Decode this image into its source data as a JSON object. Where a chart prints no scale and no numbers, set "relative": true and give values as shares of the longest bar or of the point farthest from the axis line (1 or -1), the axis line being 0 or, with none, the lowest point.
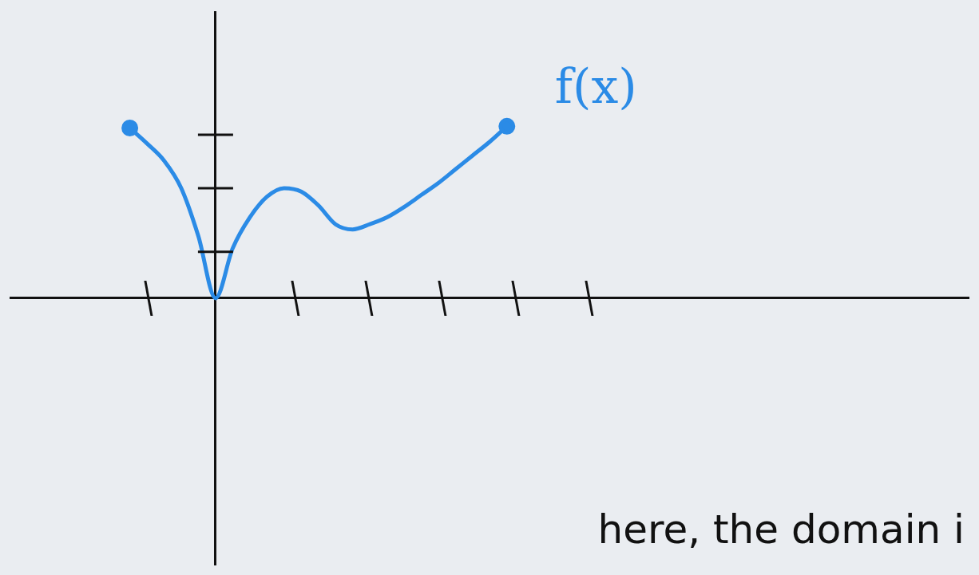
{
  "chart_data": {
    "type": "line",
    "relative": true,
    "categories": [
      null,
      null,
      null,
      null,
      null,
      null,
      null,
      null,
      null,
      null,
      null,
      null,
      null,
      null,
      null,
      null,
      null,
      null,
      null,
      null,
      null,
      null,
      null
    ],
    "series": [
      {
        "name": "f(x)",
        "color": "#2b8be6",
        "values": [
          0.99,
          0.9,
          0.8,
          0.64,
          0.36,
          0,
          0.29,
          0.47,
          0.59,
          0.64,
          0.62,
          0.54,
          0.43,
          0.4,
          0.43,
          0.47,
          0.53,
          0.6,
          0.67,
          0.75,
          0.83,
          0.91,
          1
        ]
      }
    ],
    "annotations": [
      "here, the domain i"
    ],
    "grid": false,
    "legend": false
  }
}
